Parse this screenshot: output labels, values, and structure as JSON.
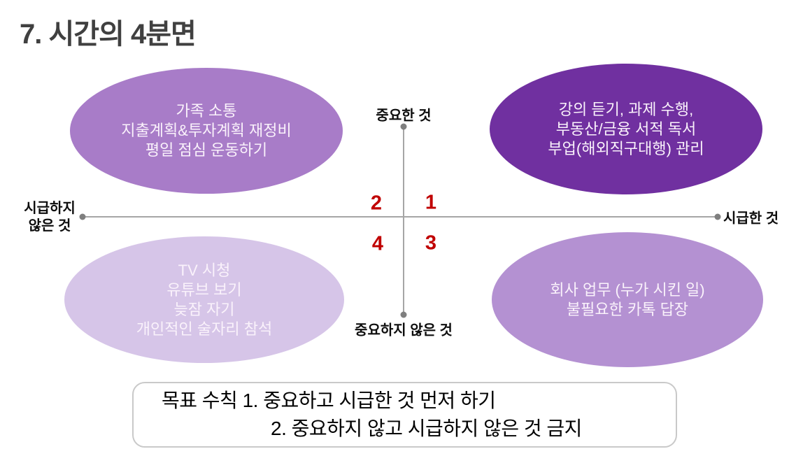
{
  "slide": {
    "title": "7. 시간의 4분면"
  },
  "axes": {
    "top_label": "중요한 것",
    "bottom_label": "중요하지 않은 것",
    "left_label_line1": "시급하지",
    "left_label_line2": "않은 것",
    "right_label": "시급한 것",
    "line_color": "#a6a6a6",
    "dot_color": "#7f7f7f"
  },
  "quadrant_numbers": {
    "q1": "1",
    "q2": "2",
    "q3": "3",
    "q4": "4",
    "color": "#c00000"
  },
  "quadrants": {
    "important_not_urgent": {
      "number": "2",
      "fill": "#a87cc8",
      "lines": [
        "가족 소통",
        "지출계획&투자계획 재정비",
        "평일 점심 운동하기"
      ]
    },
    "important_urgent": {
      "number": "1",
      "fill": "#7030a0",
      "lines": [
        "강의 듣기, 과제 수행,",
        "부동산/금융 서적 독서",
        "부업(해외직구대행) 관리"
      ]
    },
    "not_important_not_urgent": {
      "number": "4",
      "fill": "#d6c5e8",
      "lines": [
        "TV 시청",
        "유튜브 보기",
        "늦잠 자기",
        "개인적인 술자리 참석"
      ]
    },
    "not_important_urgent": {
      "number": "3",
      "fill": "#b491d2",
      "lines": [
        "회사 업무 (누가 시킨 일)",
        "불필요한 카톡 답장"
      ]
    }
  },
  "rule_box": {
    "line1": "목표 수칙 1. 중요하고 시급한 것 먼저 하기",
    "line2": "2. 중요하지 않고 시급하지 않은 것 금지"
  }
}
